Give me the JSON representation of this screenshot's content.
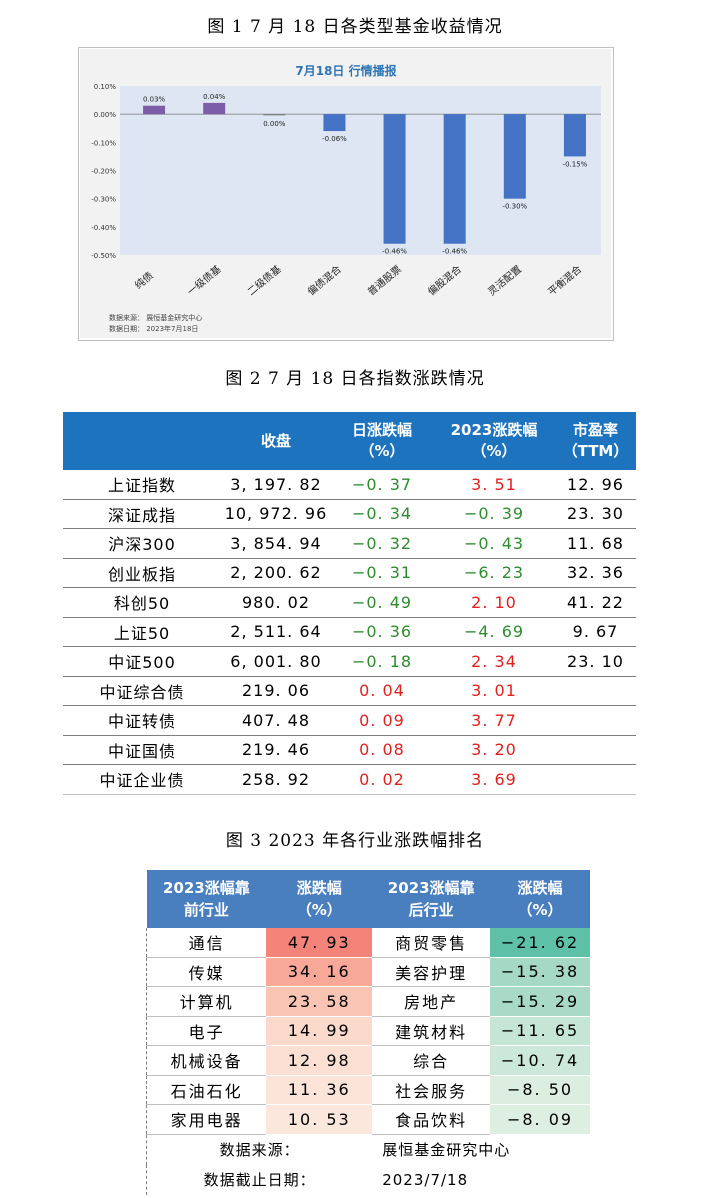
{
  "captions": {
    "fig1": "图 1    7 月 18 日各类型基金收益情况",
    "fig2": "图 2    7 月 18 日各指数涨跌情况",
    "fig3": "图 3    2023 年各行业涨跌幅排名"
  },
  "chart_data": {
    "type": "bar",
    "title": "7月18日  行情播报",
    "categories": [
      "纯债",
      "一级债基",
      "二级债基",
      "偏债混合",
      "普通股票",
      "偏股混合",
      "灵活配置",
      "平衡混合"
    ],
    "values": [
      0.03,
      0.04,
      0.0,
      -0.06,
      -0.46,
      -0.46,
      -0.3,
      -0.15
    ],
    "value_labels": [
      "0.03%",
      "0.04%",
      "0.00%",
      "-0.06%",
      "-0.46%",
      "-0.46%",
      "-0.30%",
      "-0.15%"
    ],
    "ylim": [
      -0.5,
      0.1
    ],
    "yticks": [
      0.1,
      0.0,
      -0.1,
      -0.2,
      -0.3,
      -0.4,
      -0.5
    ],
    "ytick_labels": [
      "0.10%",
      "0.00%",
      "-0.10%",
      "-0.20%",
      "-0.30%",
      "-0.40%",
      "-0.50%"
    ],
    "xlabel": "",
    "ylabel": "",
    "colors": {
      "positive": "#7b5ea7",
      "negative": "#4472c4",
      "plot_bg": "#dde6f2",
      "title": "#2e75b6"
    },
    "source_lines": [
      "数据来源：  展恒基金研究中心",
      "数据日期：  2023年7月18日"
    ]
  },
  "table2": {
    "headers": [
      "",
      "收盘",
      "日涨跌幅\n（%）",
      "2023涨跌幅\n（%）",
      "市盈率\n（TTM）"
    ],
    "rows": [
      {
        "name": "上证指数",
        "close": "3, 197. 82",
        "day": "−0. 37",
        "day_sign": "neg",
        "ytd": "3. 51",
        "ytd_sign": "pos",
        "pe": "12. 96"
      },
      {
        "name": "深证成指",
        "close": "10, 972. 96",
        "day": "−0. 34",
        "day_sign": "neg",
        "ytd": "−0. 39",
        "ytd_sign": "neg",
        "pe": "23. 30"
      },
      {
        "name": "沪深300",
        "close": "3, 854. 94",
        "day": "−0. 32",
        "day_sign": "neg",
        "ytd": "−0. 43",
        "ytd_sign": "neg",
        "pe": "11. 68"
      },
      {
        "name": "创业板指",
        "close": "2, 200. 62",
        "day": "−0. 31",
        "day_sign": "neg",
        "ytd": "−6. 23",
        "ytd_sign": "neg",
        "pe": "32. 36"
      },
      {
        "name": "科创50",
        "close": "980. 02",
        "day": "−0. 49",
        "day_sign": "neg",
        "ytd": "2. 10",
        "ytd_sign": "pos",
        "pe": "41. 22"
      },
      {
        "name": "上证50",
        "close": "2, 511. 64",
        "day": "−0. 36",
        "day_sign": "neg",
        "ytd": "−4. 69",
        "ytd_sign": "neg",
        "pe": "9. 67"
      },
      {
        "name": "中证500",
        "close": "6, 001. 80",
        "day": "−0. 18",
        "day_sign": "neg",
        "ytd": "2. 34",
        "ytd_sign": "pos",
        "pe": "23. 10"
      },
      {
        "name": "中证综合债",
        "close": "219. 06",
        "day": "0. 04",
        "day_sign": "pos",
        "ytd": "3. 01",
        "ytd_sign": "pos",
        "pe": ""
      },
      {
        "name": "中证转债",
        "close": "407. 48",
        "day": "0. 09",
        "day_sign": "pos",
        "ytd": "3. 77",
        "ytd_sign": "pos",
        "pe": ""
      },
      {
        "name": "中证国债",
        "close": "219. 46",
        "day": "0. 08",
        "day_sign": "pos",
        "ytd": "3. 20",
        "ytd_sign": "pos",
        "pe": ""
      },
      {
        "name": "中证企业债",
        "close": "258. 92",
        "day": "0. 02",
        "day_sign": "pos",
        "ytd": "3. 69",
        "ytd_sign": "pos",
        "pe": ""
      }
    ]
  },
  "table3": {
    "headers": [
      "2023涨幅靠\n前行业",
      "涨跌幅\n（%）",
      "2023涨幅靠\n后行业",
      "涨跌幅\n（%）"
    ],
    "rows": [
      {
        "top": "通信",
        "top_val": "47. 93",
        "top_color": "#f4847a",
        "bot": "商贸零售",
        "bot_val": "−21. 62",
        "bot_color": "#5fc0a8"
      },
      {
        "top": "传媒",
        "top_val": "34. 16",
        "top_color": "#f7a898",
        "bot": "美容护理",
        "bot_val": "−15. 38",
        "bot_color": "#a6d9c5"
      },
      {
        "top": "计算机",
        "top_val": "23. 58",
        "top_color": "#f9c4b4",
        "bot": "房地产",
        "bot_val": "−15. 29",
        "bot_color": "#a9dac7"
      },
      {
        "top": "电子",
        "top_val": "14. 99",
        "top_color": "#fbd9cb",
        "bot": "建筑材料",
        "bot_val": "−11. 65",
        "bot_color": "#c5e5d5"
      },
      {
        "top": "机械设备",
        "top_val": "12. 98",
        "top_color": "#fbdfd2",
        "bot": "综合",
        "bot_val": "−10. 74",
        "bot_color": "#cce8da"
      },
      {
        "top": "石油石化",
        "top_val": "11. 36",
        "top_color": "#fce4d8",
        "bot": "社会服务",
        "bot_val": "−8. 50",
        "bot_color": "#dbeedf"
      },
      {
        "top": "家用电器",
        "top_val": "10. 53",
        "top_color": "#fce7dc",
        "bot": "食品饮料",
        "bot_val": "−8. 09",
        "bot_color": "#ddefe1"
      }
    ],
    "footer": [
      {
        "label": "数据来源：",
        "value": "展恒基金研究中心"
      },
      {
        "label": "数据截止日期：",
        "value": "2023/7/18"
      }
    ]
  }
}
